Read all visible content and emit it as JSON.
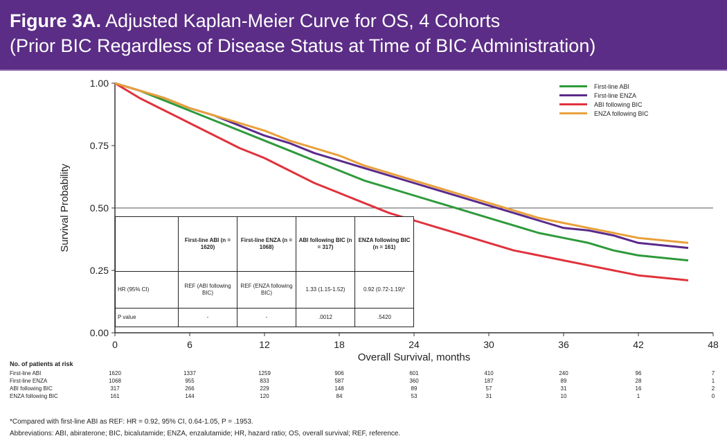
{
  "header": {
    "figure_label": "Figure 3A.",
    "title_rest": "Adjusted Kaplan-Meier Curve for OS, 4 Cohorts",
    "subtitle": "(Prior BIC Regardless of Disease Status at Time of BIC Administration)",
    "bg_color": "#5b2d86"
  },
  "chart_data": {
    "type": "line",
    "xlabel": "Overall Survival, months",
    "ylabel": "Survival Probability",
    "xlim": [
      0,
      48
    ],
    "ylim": [
      0,
      1
    ],
    "x_ticks": [
      0,
      6,
      12,
      18,
      24,
      30,
      36,
      42,
      48
    ],
    "y_ticks": [
      "0.00",
      "0.25",
      "0.50",
      "0.75",
      "1.00"
    ],
    "reference_line_y": 0.5,
    "legend_position": "top-right",
    "series": [
      {
        "name": "First-line ABI",
        "color": "#2e9a3a",
        "x": [
          0,
          2,
          4,
          6,
          8,
          10,
          12,
          14,
          16,
          18,
          20,
          22,
          24,
          26,
          28,
          30,
          32,
          34,
          36,
          38,
          40,
          42,
          44,
          46
        ],
        "y": [
          1.0,
          0.97,
          0.93,
          0.89,
          0.85,
          0.81,
          0.77,
          0.73,
          0.69,
          0.65,
          0.61,
          0.58,
          0.55,
          0.52,
          0.49,
          0.46,
          0.43,
          0.4,
          0.38,
          0.36,
          0.33,
          0.31,
          0.3,
          0.29
        ]
      },
      {
        "name": "First-line ENZA",
        "color": "#5a2a8a",
        "x": [
          0,
          2,
          4,
          6,
          8,
          10,
          12,
          14,
          16,
          18,
          20,
          22,
          24,
          26,
          28,
          30,
          32,
          34,
          36,
          38,
          40,
          42,
          44,
          46
        ],
        "y": [
          1.0,
          0.97,
          0.94,
          0.9,
          0.87,
          0.83,
          0.79,
          0.76,
          0.72,
          0.69,
          0.66,
          0.63,
          0.6,
          0.57,
          0.54,
          0.51,
          0.48,
          0.45,
          0.42,
          0.41,
          0.39,
          0.36,
          0.35,
          0.34
        ]
      },
      {
        "name": "ABI following BIC",
        "color": "#e0323c",
        "x": [
          0,
          2,
          4,
          6,
          8,
          10,
          12,
          14,
          16,
          18,
          20,
          22,
          24,
          26,
          28,
          30,
          32,
          34,
          36,
          38,
          40,
          42,
          44,
          46
        ],
        "y": [
          1.0,
          0.94,
          0.89,
          0.84,
          0.79,
          0.74,
          0.7,
          0.65,
          0.6,
          0.56,
          0.52,
          0.48,
          0.45,
          0.42,
          0.39,
          0.36,
          0.33,
          0.31,
          0.29,
          0.27,
          0.25,
          0.23,
          0.22,
          0.21
        ]
      },
      {
        "name": "ENZA following BIC",
        "color": "#e9a03a",
        "x": [
          0,
          2,
          4,
          6,
          8,
          10,
          12,
          14,
          16,
          18,
          20,
          22,
          24,
          26,
          28,
          30,
          32,
          34,
          36,
          38,
          40,
          42,
          44,
          46
        ],
        "y": [
          1.0,
          0.97,
          0.94,
          0.9,
          0.87,
          0.84,
          0.81,
          0.77,
          0.74,
          0.71,
          0.67,
          0.64,
          0.61,
          0.58,
          0.55,
          0.52,
          0.49,
          0.46,
          0.44,
          0.42,
          0.4,
          0.38,
          0.37,
          0.36
        ]
      }
    ]
  },
  "hr_table": {
    "headers": [
      "",
      "First-line ABI (n = 1620)",
      "First-line ENZA (n = 1068)",
      "ABI following BIC (n = 317)",
      "ENZA following BIC (n = 161)"
    ],
    "rows": [
      {
        "label": "HR (95% CI)",
        "values": [
          "REF (ABI following BIC)",
          "REF (ENZA following BIC)",
          "1.33 (1.15-1.52)",
          "0.92 (0.72-1.19)*"
        ]
      },
      {
        "label": "P value",
        "values": [
          "-",
          "-",
          ".0012",
          ".5420"
        ]
      }
    ]
  },
  "risk_table": {
    "title": "No. of patients at risk",
    "x": [
      0,
      6,
      12,
      18,
      24,
      30,
      36,
      42,
      48
    ],
    "rows": [
      {
        "label": "First-line ABI",
        "values": [
          "1620",
          "1337",
          "1259",
          "906",
          "601",
          "410",
          "240",
          "96",
          "7"
        ]
      },
      {
        "label": "First-line ENZA",
        "values": [
          "1068",
          "955",
          "833",
          "587",
          "360",
          "187",
          "89",
          "28",
          "1"
        ]
      },
      {
        "label": "ABI following BIC",
        "values": [
          "317",
          "266",
          "229",
          "148",
          "89",
          "57",
          "31",
          "16",
          "2"
        ]
      },
      {
        "label": "ENZA following BIC",
        "values": [
          "161",
          "144",
          "120",
          "84",
          "53",
          "31",
          "10",
          "1",
          "0"
        ]
      }
    ]
  },
  "footnotes": {
    "line1": "*Compared with first-line ABI as REF: HR = 0.92, 95% CI, 0.64-1.05, P = .1953.",
    "line2": "Abbreviations: ABI, abiraterone; BIC, bicalutamide; ENZA, enzalutamide; HR, hazard ratio; OS, overall survival; REF, reference."
  }
}
